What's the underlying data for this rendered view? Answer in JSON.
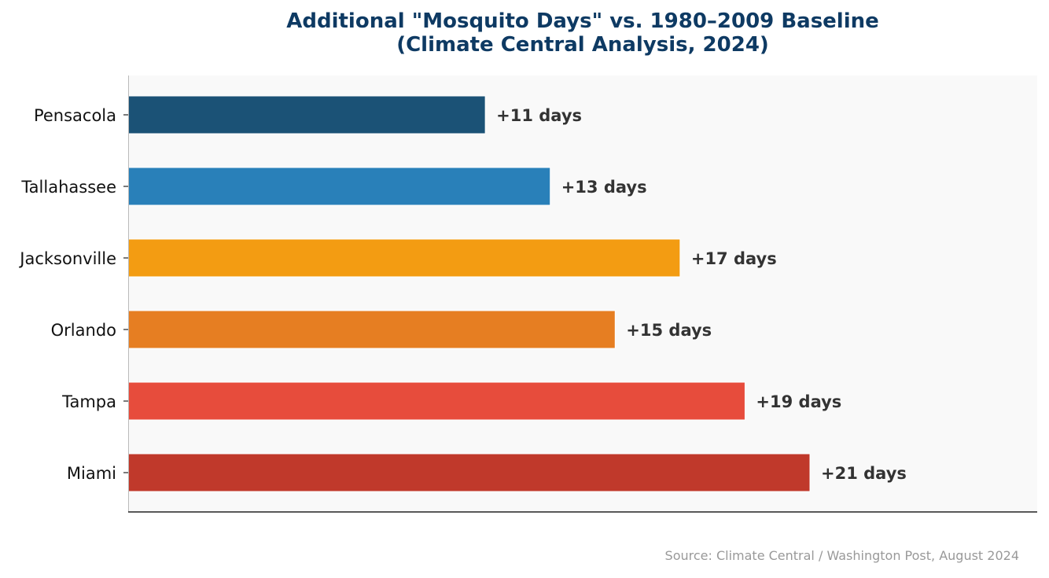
{
  "chart_data": {
    "type": "bar",
    "orientation": "horizontal",
    "title": "Additional \"Mosquito Days\" vs. 1980–2009 Baseline",
    "subtitle": "(Climate Central Analysis, 2024)",
    "categories": [
      "Pensacola",
      "Tallahassee",
      "Jacksonville",
      "Orlando",
      "Tampa",
      "Miami"
    ],
    "values": [
      11,
      13,
      17,
      15,
      19,
      21
    ],
    "data_labels": [
      "+11 days",
      "+13 days",
      "+17 days",
      "+15 days",
      "+19 days",
      "+21 days"
    ],
    "colors": [
      "#1b5276",
      "#2980b9",
      "#f39c12",
      "#e67e22",
      "#e74c3c",
      "#c0392b"
    ],
    "xlim": [
      0,
      28
    ],
    "grid": false,
    "xlabel": "",
    "ylabel": "",
    "source": "Source: Climate Central / Washington Post, August 2024",
    "title_color": "#0e3a63",
    "plot_background": "#f9f9f9"
  }
}
